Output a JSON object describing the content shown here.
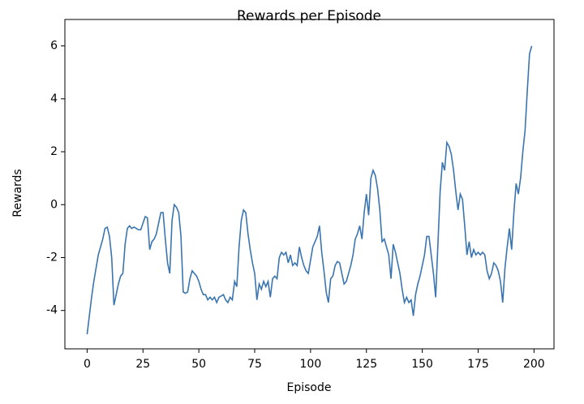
{
  "chart_data": {
    "type": "line",
    "title": "Rewards per Episode",
    "xlabel": "Episode",
    "ylabel": "Rewards",
    "x": [
      0,
      1,
      2,
      3,
      4,
      5,
      6,
      7,
      8,
      9,
      10,
      11,
      12,
      13,
      14,
      15,
      16,
      17,
      18,
      19,
      20,
      21,
      22,
      23,
      24,
      25,
      26,
      27,
      28,
      29,
      30,
      31,
      32,
      33,
      34,
      35,
      36,
      37,
      38,
      39,
      40,
      41,
      42,
      43,
      44,
      45,
      46,
      47,
      48,
      49,
      50,
      51,
      52,
      53,
      54,
      55,
      56,
      57,
      58,
      59,
      60,
      61,
      62,
      63,
      64,
      65,
      66,
      67,
      68,
      69,
      70,
      71,
      72,
      73,
      74,
      75,
      76,
      77,
      78,
      79,
      80,
      81,
      82,
      83,
      84,
      85,
      86,
      87,
      88,
      89,
      90,
      91,
      92,
      93,
      94,
      95,
      96,
      97,
      98,
      99,
      100,
      101,
      102,
      103,
      104,
      105,
      106,
      107,
      108,
      109,
      110,
      111,
      112,
      113,
      114,
      115,
      116,
      117,
      118,
      119,
      120,
      121,
      122,
      123,
      124,
      125,
      126,
      127,
      128,
      129,
      130,
      131,
      132,
      133,
      134,
      135,
      136,
      137,
      138,
      139,
      140,
      141,
      142,
      143,
      144,
      145,
      146,
      147,
      148,
      149,
      150,
      151,
      152,
      153,
      154,
      155,
      156,
      157,
      158,
      159,
      160,
      161,
      162,
      163,
      164,
      165,
      166,
      167,
      168,
      169,
      170,
      171,
      172,
      173,
      174,
      175,
      176,
      177,
      178,
      179,
      180,
      181,
      182,
      183,
      184,
      185,
      186,
      187,
      188,
      189,
      190,
      191,
      192,
      193,
      194,
      195,
      196,
      197,
      198,
      199
    ],
    "series": [
      {
        "name": "Rewards",
        "color": "#3a75b0",
        "values": [
          -4.9,
          -4.2,
          -3.5,
          -2.9,
          -2.4,
          -1.9,
          -1.6,
          -1.3,
          -0.9,
          -0.85,
          -1.2,
          -2.0,
          -3.8,
          -3.4,
          -3.0,
          -2.7,
          -2.6,
          -1.5,
          -0.9,
          -0.8,
          -0.9,
          -0.85,
          -0.9,
          -0.95,
          -0.95,
          -0.7,
          -0.45,
          -0.5,
          -1.7,
          -1.4,
          -1.3,
          -1.1,
          -0.7,
          -0.3,
          -0.3,
          -1.3,
          -2.2,
          -2.6,
          -0.6,
          0.0,
          -0.1,
          -0.3,
          -1.2,
          -3.3,
          -3.35,
          -3.3,
          -2.8,
          -2.5,
          -2.6,
          -2.7,
          -2.9,
          -3.2,
          -3.4,
          -3.4,
          -3.6,
          -3.5,
          -3.6,
          -3.5,
          -3.7,
          -3.5,
          -3.45,
          -3.4,
          -3.6,
          -3.7,
          -3.5,
          -3.6,
          -2.9,
          -3.1,
          -1.6,
          -0.6,
          -0.2,
          -0.3,
          -1.1,
          -1.7,
          -2.2,
          -2.6,
          -3.6,
          -3.0,
          -3.2,
          -2.9,
          -3.1,
          -2.9,
          -3.5,
          -2.8,
          -2.7,
          -2.8,
          -2.0,
          -1.8,
          -1.9,
          -1.8,
          -2.2,
          -1.9,
          -2.3,
          -2.2,
          -2.3,
          -1.6,
          -2.0,
          -2.3,
          -2.5,
          -2.6,
          -2.1,
          -1.6,
          -1.4,
          -1.2,
          -0.8,
          -1.8,
          -2.5,
          -3.3,
          -3.7,
          -2.8,
          -2.7,
          -2.3,
          -2.15,
          -2.2,
          -2.6,
          -3.0,
          -2.9,
          -2.6,
          -2.3,
          -1.9,
          -1.3,
          -1.1,
          -0.8,
          -1.3,
          -0.3,
          0.4,
          -0.4,
          1.0,
          1.3,
          1.1,
          0.6,
          -0.2,
          -1.4,
          -1.3,
          -1.6,
          -1.9,
          -2.8,
          -1.5,
          -1.8,
          -2.2,
          -2.6,
          -3.2,
          -3.7,
          -3.5,
          -3.7,
          -3.6,
          -4.2,
          -3.4,
          -3.0,
          -2.7,
          -2.3,
          -1.9,
          -1.2,
          -1.2,
          -1.9,
          -2.6,
          -3.5,
          -1.5,
          0.5,
          1.6,
          1.3,
          2.35,
          2.2,
          1.9,
          1.3,
          0.5,
          -0.2,
          0.4,
          0.2,
          -0.8,
          -1.9,
          -1.4,
          -2.0,
          -1.7,
          -1.9,
          -1.8,
          -1.9,
          -1.8,
          -1.9,
          -2.5,
          -2.8,
          -2.6,
          -2.2,
          -2.3,
          -2.5,
          -2.9,
          -3.7,
          -2.4,
          -1.6,
          -0.9,
          -1.7,
          -0.3,
          0.8,
          0.4,
          1.0,
          2.0,
          2.8,
          4.3,
          5.7,
          6.0
        ]
      }
    ],
    "xlim": [
      -9.95,
      208.95
    ],
    "ylim": [
      -5.45,
      7.0
    ],
    "xticks": [
      0,
      25,
      50,
      75,
      100,
      125,
      150,
      175,
      200
    ],
    "yticks": [
      -4,
      -2,
      0,
      2,
      4,
      6
    ],
    "grid": false
  }
}
